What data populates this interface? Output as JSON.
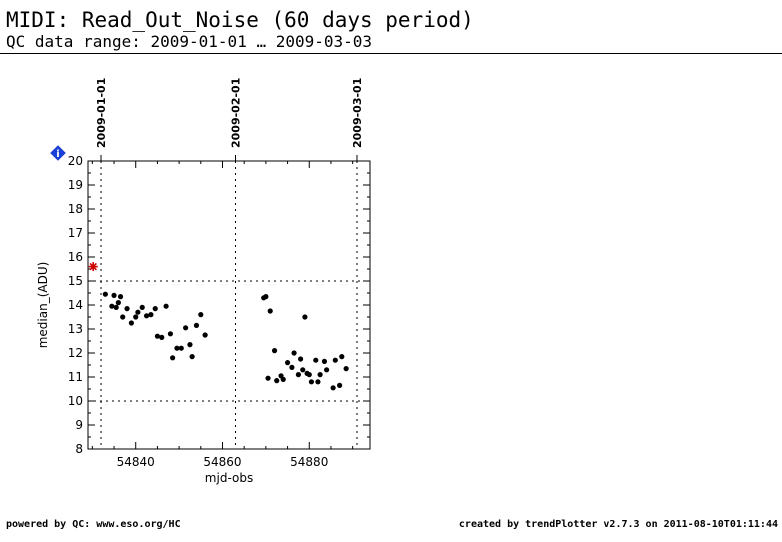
{
  "header": {
    "title": "MIDI: Read_Out_Noise (60 days period)",
    "subtitle": "QC data range: 2009-01-01 … 2009-03-03"
  },
  "footer": {
    "left": "powered by QC: www.eso.org/HC",
    "right": "created by trendPlotter v2.7.3 on 2011-08-10T01:11:44"
  },
  "info_badge": {
    "label": "i",
    "color": "#1a3fd6"
  },
  "chart_data": {
    "type": "scatter",
    "title": "",
    "xlabel": "mjd-obs",
    "ylabel": "median_(ADU)",
    "xlim": [
      54829,
      54894
    ],
    "ylim": [
      8,
      20
    ],
    "x_ticks": [
      54840,
      54860,
      54880
    ],
    "y_ticks": [
      8,
      9,
      10,
      11,
      12,
      13,
      14,
      15,
      16,
      17,
      18,
      19,
      20
    ],
    "date_markers": [
      {
        "mjd": 54832,
        "label": "2009-01-01"
      },
      {
        "mjd": 54863,
        "label": "2009-02-01"
      },
      {
        "mjd": 54891,
        "label": "2009-03-01"
      }
    ],
    "threshold_lines": [
      15,
      10
    ],
    "grid": false,
    "series": [
      {
        "marker": "dot",
        "color": "#000000",
        "points": [
          [
            54833.0,
            14.45
          ],
          [
            54834.5,
            13.95
          ],
          [
            54835.0,
            14.4
          ],
          [
            54835.5,
            13.9
          ],
          [
            54836.0,
            14.1
          ],
          [
            54836.5,
            14.35
          ],
          [
            54837.0,
            13.5
          ],
          [
            54838.0,
            13.85
          ],
          [
            54839.0,
            13.25
          ],
          [
            54840.0,
            13.5
          ],
          [
            54840.5,
            13.7
          ],
          [
            54841.5,
            13.9
          ],
          [
            54842.5,
            13.55
          ],
          [
            54843.5,
            13.6
          ],
          [
            54844.5,
            13.85
          ],
          [
            54845.0,
            12.7
          ],
          [
            54846.0,
            12.65
          ],
          [
            54847.0,
            13.95
          ],
          [
            54848.0,
            12.8
          ],
          [
            54848.5,
            11.8
          ],
          [
            54849.5,
            12.2
          ],
          [
            54850.5,
            12.2
          ],
          [
            54851.5,
            13.05
          ],
          [
            54852.5,
            12.35
          ],
          [
            54853.0,
            11.85
          ],
          [
            54854.0,
            13.15
          ],
          [
            54855.0,
            13.6
          ],
          [
            54856.0,
            12.75
          ],
          [
            54869.5,
            14.3
          ],
          [
            54870.0,
            14.35
          ],
          [
            54870.5,
            10.95
          ],
          [
            54871.0,
            13.75
          ],
          [
            54872.0,
            12.1
          ],
          [
            54872.5,
            10.85
          ],
          [
            54873.5,
            11.05
          ],
          [
            54874.0,
            10.9
          ],
          [
            54875.0,
            11.6
          ],
          [
            54876.0,
            11.4
          ],
          [
            54876.5,
            12.0
          ],
          [
            54877.5,
            11.1
          ],
          [
            54878.0,
            11.75
          ],
          [
            54878.5,
            11.3
          ],
          [
            54879.0,
            13.5
          ],
          [
            54879.5,
            11.15
          ],
          [
            54880.0,
            11.1
          ],
          [
            54880.5,
            10.8
          ],
          [
            54881.5,
            11.7
          ],
          [
            54882.0,
            10.8
          ],
          [
            54882.5,
            11.1
          ],
          [
            54883.5,
            11.65
          ],
          [
            54884.0,
            11.3
          ],
          [
            54885.5,
            10.55
          ],
          [
            54886.0,
            11.7
          ],
          [
            54887.0,
            10.65
          ],
          [
            54887.5,
            11.85
          ],
          [
            54888.5,
            11.35
          ]
        ]
      },
      {
        "marker": "star",
        "color": "#cc0000",
        "points": [
          [
            54830.2,
            15.6
          ]
        ]
      }
    ]
  }
}
